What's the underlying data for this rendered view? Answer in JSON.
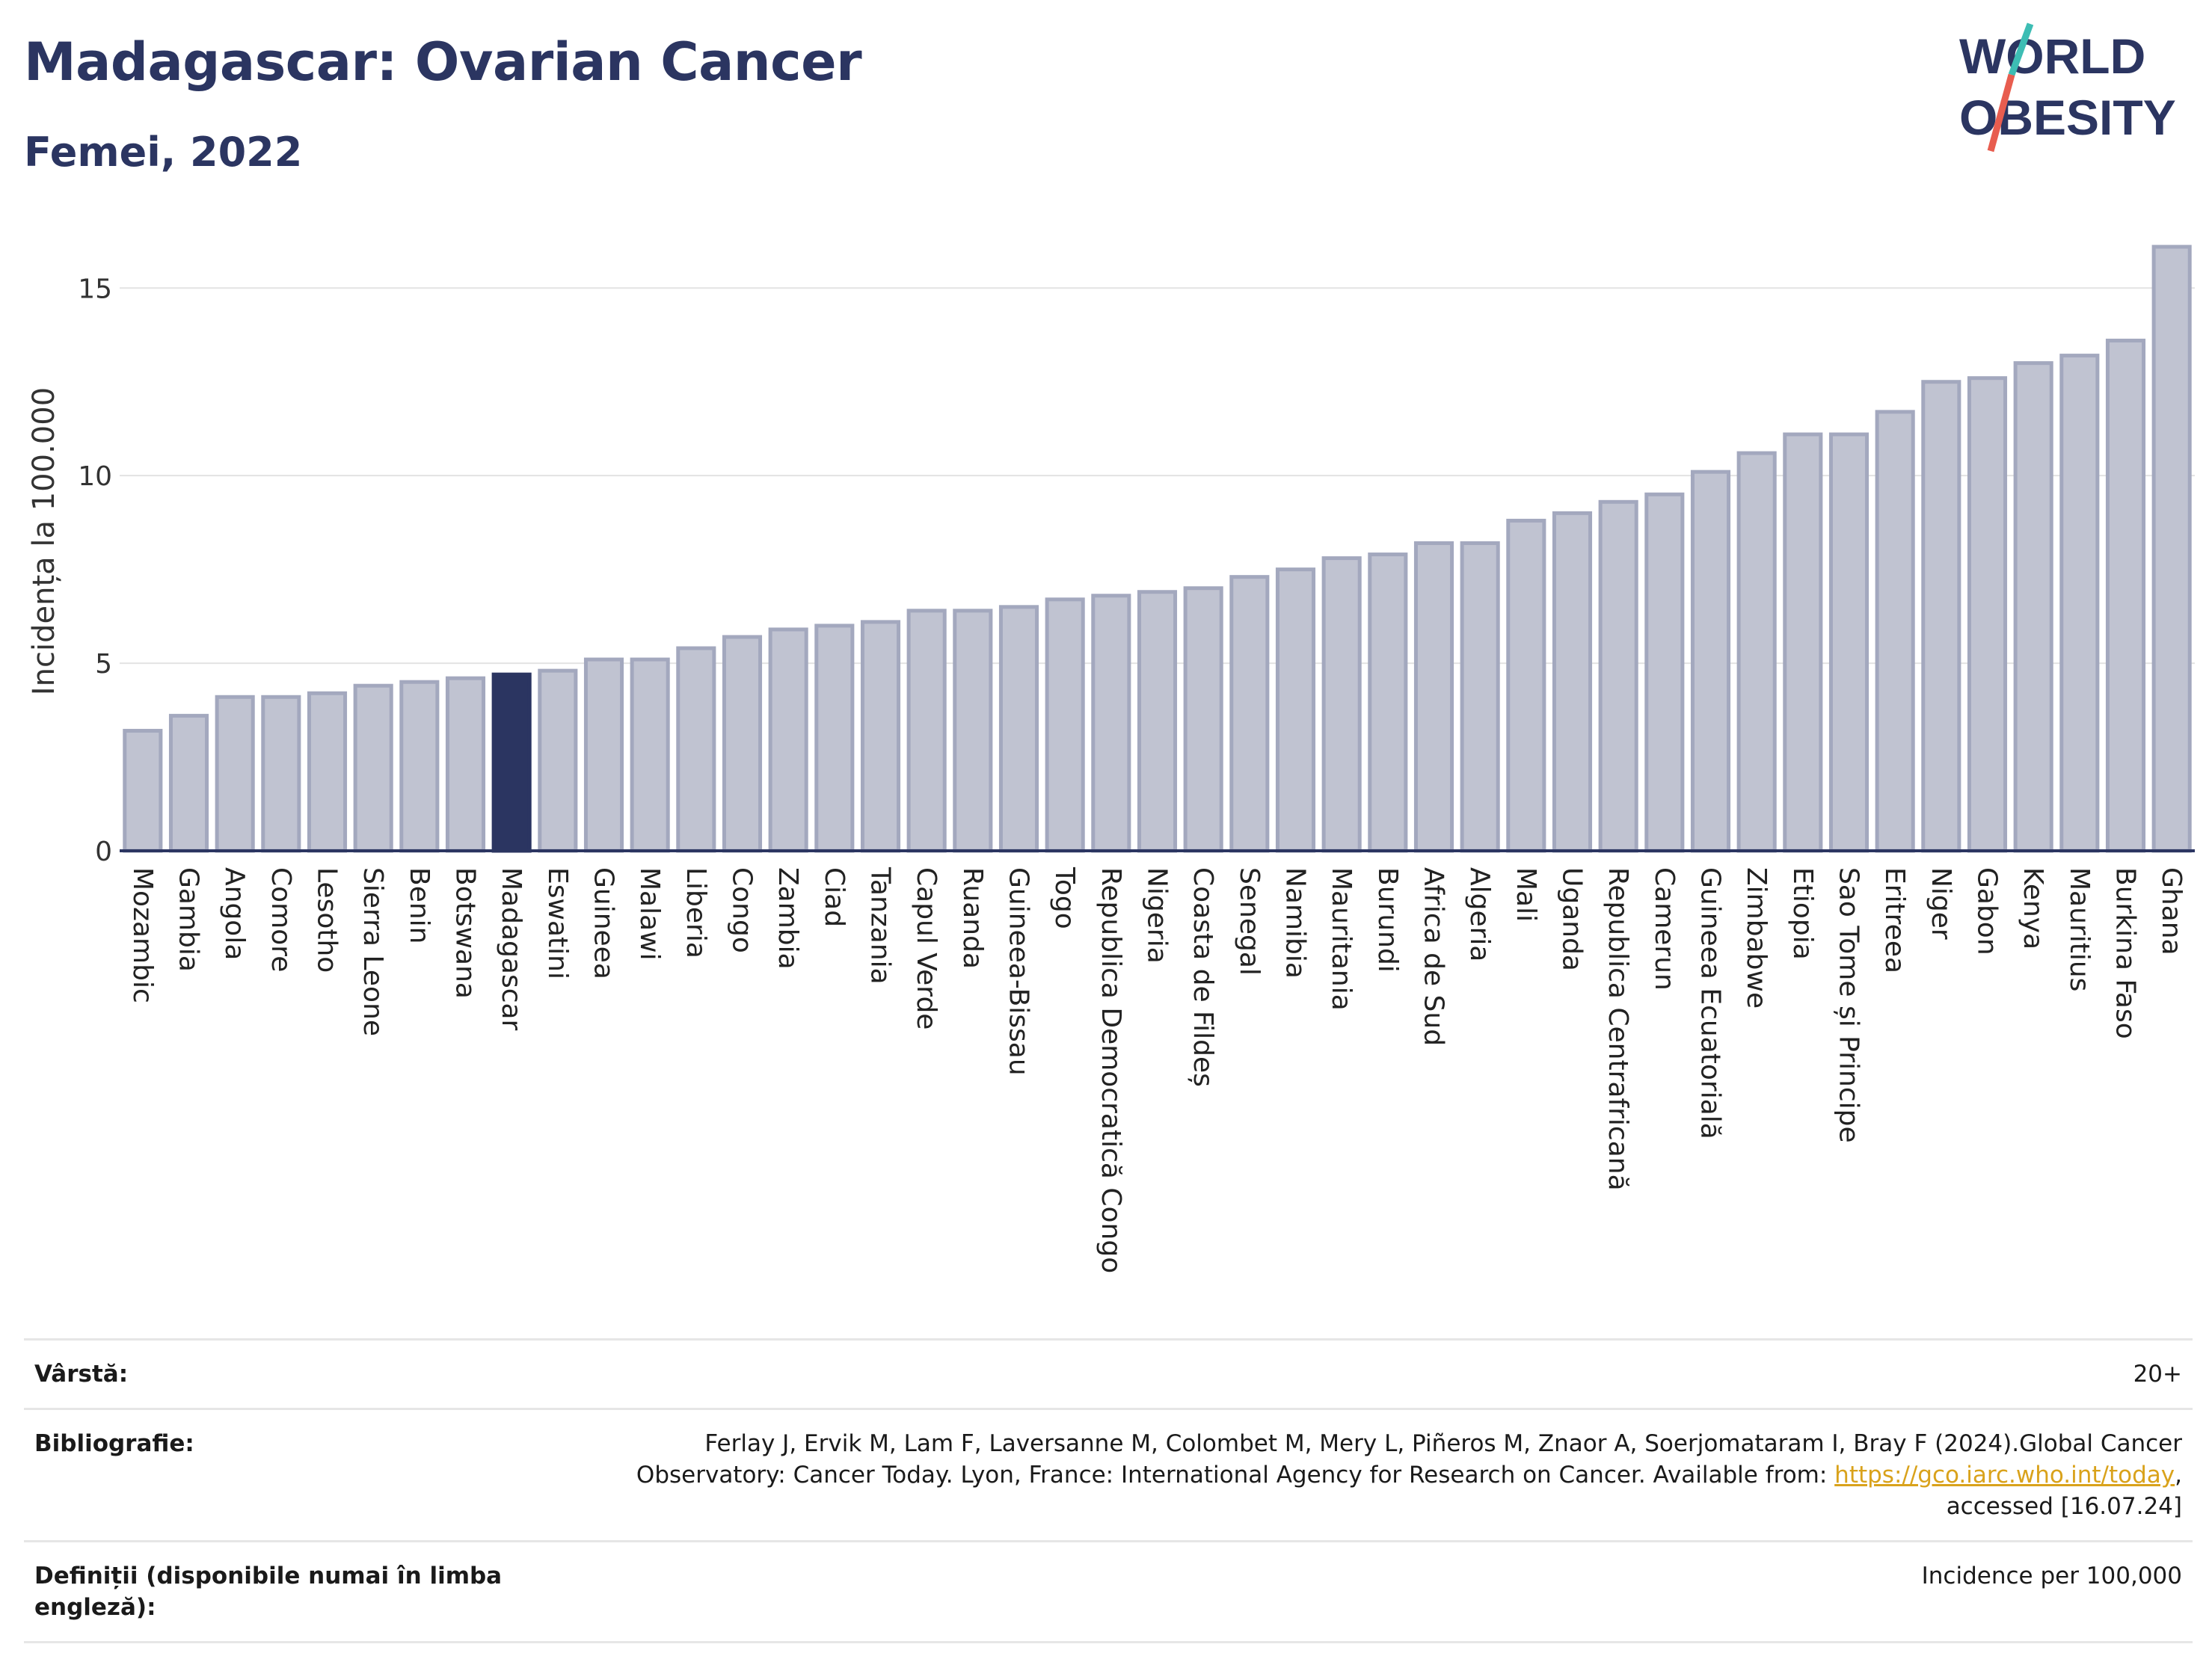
{
  "header": {
    "title": "Madagascar: Ovarian Cancer",
    "subtitle": "Femei, 2022",
    "logo_line1": "WORLD",
    "logo_line2": "OBESITY"
  },
  "chart_data": {
    "type": "bar",
    "title": "Madagascar: Ovarian Cancer",
    "subtitle": "Femei, 2022",
    "ylabel": "Incidența la 100.000",
    "xlabel": "",
    "ylim": [
      0,
      16.5
    ],
    "yticks": [
      0,
      5,
      10,
      15
    ],
    "grid": true,
    "highlight": "Madagascar",
    "colors": {
      "bar": "#c0c3d1",
      "bar_edge": "#a3a8be",
      "highlight": "#2b3561",
      "axis": "#2b3561",
      "grid": "#e3e3e3"
    },
    "categories": [
      "Mozambic",
      "Gambia",
      "Angola",
      "Comore",
      "Lesotho",
      "Sierra Leone",
      "Benin",
      "Botswana",
      "Madagascar",
      "Eswatini",
      "Guineea",
      "Malawi",
      "Liberia",
      "Congo",
      "Zambia",
      "Ciad",
      "Tanzania",
      "Capul Verde",
      "Ruanda",
      "Guineea-Bissau",
      "Togo",
      "Republica Democratică Congo",
      "Nigeria",
      "Coasta de Fildeș",
      "Senegal",
      "Namibia",
      "Mauritania",
      "Burundi",
      "Africa de Sud",
      "Algeria",
      "Mali",
      "Uganda",
      "Republica Centrafricană",
      "Camerun",
      "Guineea Ecuatorială",
      "Zimbabwe",
      "Etiopia",
      "Sao Tome și Principe",
      "Eritreea",
      "Niger",
      "Gabon",
      "Kenya",
      "Mauritius",
      "Burkina Faso",
      "Ghana"
    ],
    "values": [
      3.2,
      3.6,
      4.1,
      4.1,
      4.2,
      4.4,
      4.5,
      4.6,
      4.7,
      4.8,
      5.1,
      5.1,
      5.4,
      5.7,
      5.9,
      6.0,
      6.1,
      6.4,
      6.4,
      6.5,
      6.7,
      6.8,
      6.9,
      7.0,
      7.3,
      7.5,
      7.8,
      7.9,
      8.2,
      8.2,
      8.8,
      9.0,
      9.3,
      9.5,
      10.1,
      10.6,
      11.1,
      11.1,
      11.7,
      12.5,
      12.6,
      13.0,
      13.2,
      13.6,
      16.1
    ]
  },
  "info": {
    "age_label": "Vârstă:",
    "age_value": "20+",
    "bib_label": "Bibliografie:",
    "bib_text1": "Ferlay J, Ervik M, Lam F, Laversanne M, Colombet M, Mery L, Piñeros M, Znaor A, Soerjomataram I, Bray F (2024).Global Cancer",
    "bib_text2": "Observatory: Cancer Today. Lyon, France: International Agency for Research on Cancer. Available from: ",
    "bib_link": "https://gco.iarc.who.int/today",
    "bib_text3": ",",
    "bib_text4": "accessed [16.07.24]",
    "def_label": "Definiții (disponibile numai în limba engleză):",
    "def_value": "Incidence per 100,000"
  }
}
